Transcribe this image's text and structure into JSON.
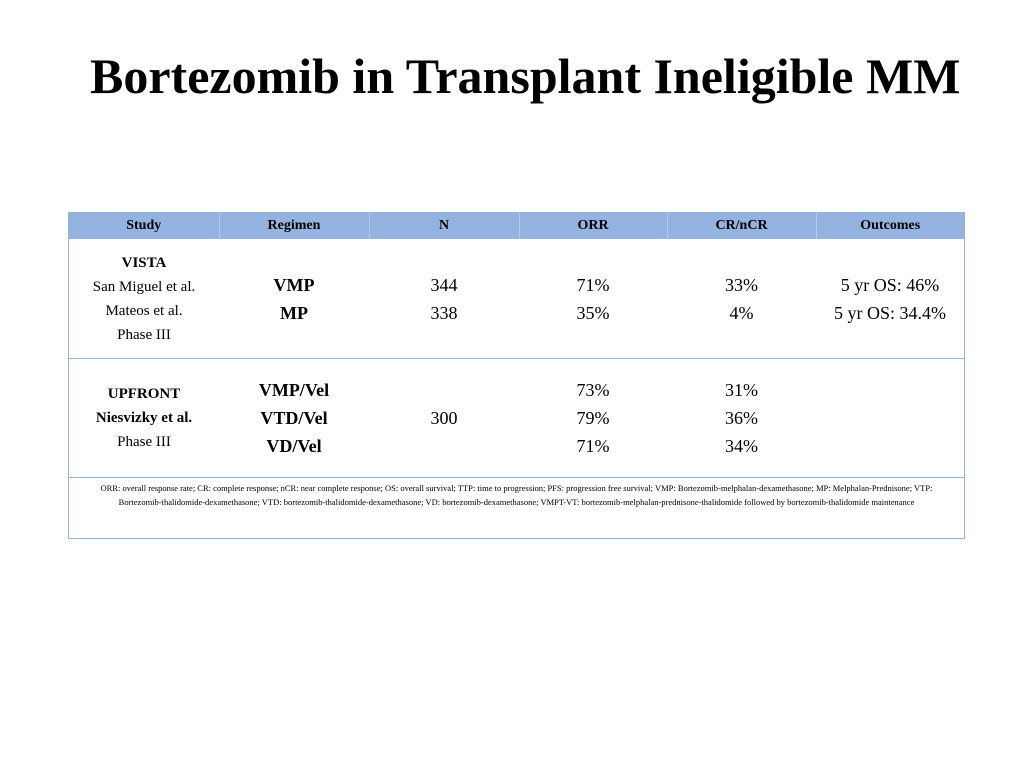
{
  "title": "Bortezomib in Transplant Ineligible MM",
  "table": {
    "headers": [
      "Study",
      "Regimen",
      "N",
      "ORR",
      "CR/nCR",
      "Outcomes"
    ],
    "rows": [
      {
        "study_name": "VISTA",
        "study_lines": [
          "San Miguel et al.",
          "Mateos et al.",
          "Phase III"
        ],
        "regimens": [
          "VMP",
          "MP"
        ],
        "n": [
          "344",
          "338"
        ],
        "orr": [
          "71%",
          "35%"
        ],
        "crncr": [
          "33%",
          "4%"
        ],
        "outcomes": [
          "5 yr OS: 46%",
          "5 yr OS: 34.4%"
        ]
      },
      {
        "study_name": "UPFRONT",
        "study_lines": [
          "Niesvizky et al.",
          "Phase III"
        ],
        "regimens": [
          "VMP/Vel",
          "VTD/Vel",
          "VD/Vel"
        ],
        "n": [
          "300"
        ],
        "orr": [
          "73%",
          "79%",
          "71%"
        ],
        "crncr": [
          "31%",
          "36%",
          "34%"
        ],
        "outcomes": []
      }
    ],
    "footnote": "ORR: overall response rate; CR: complete response; nCR: near complete response; OS: overall survival; TTP: time to progression; PFS: progression free survival; VMP: Bortezomib-melphalan-dexamethasone; MP: Melphalan-Prednisone; VTP: Bortezomib-thalidomide-dexamethasone; VTD: bortezomib-thalidomide-dexamethasone; VD: bortezomib-dexamethasone; VMPT-VT: bortezomib-melphalan-prednisone-thalidomide followed by bortezomib-thalidomide maintenance"
  }
}
